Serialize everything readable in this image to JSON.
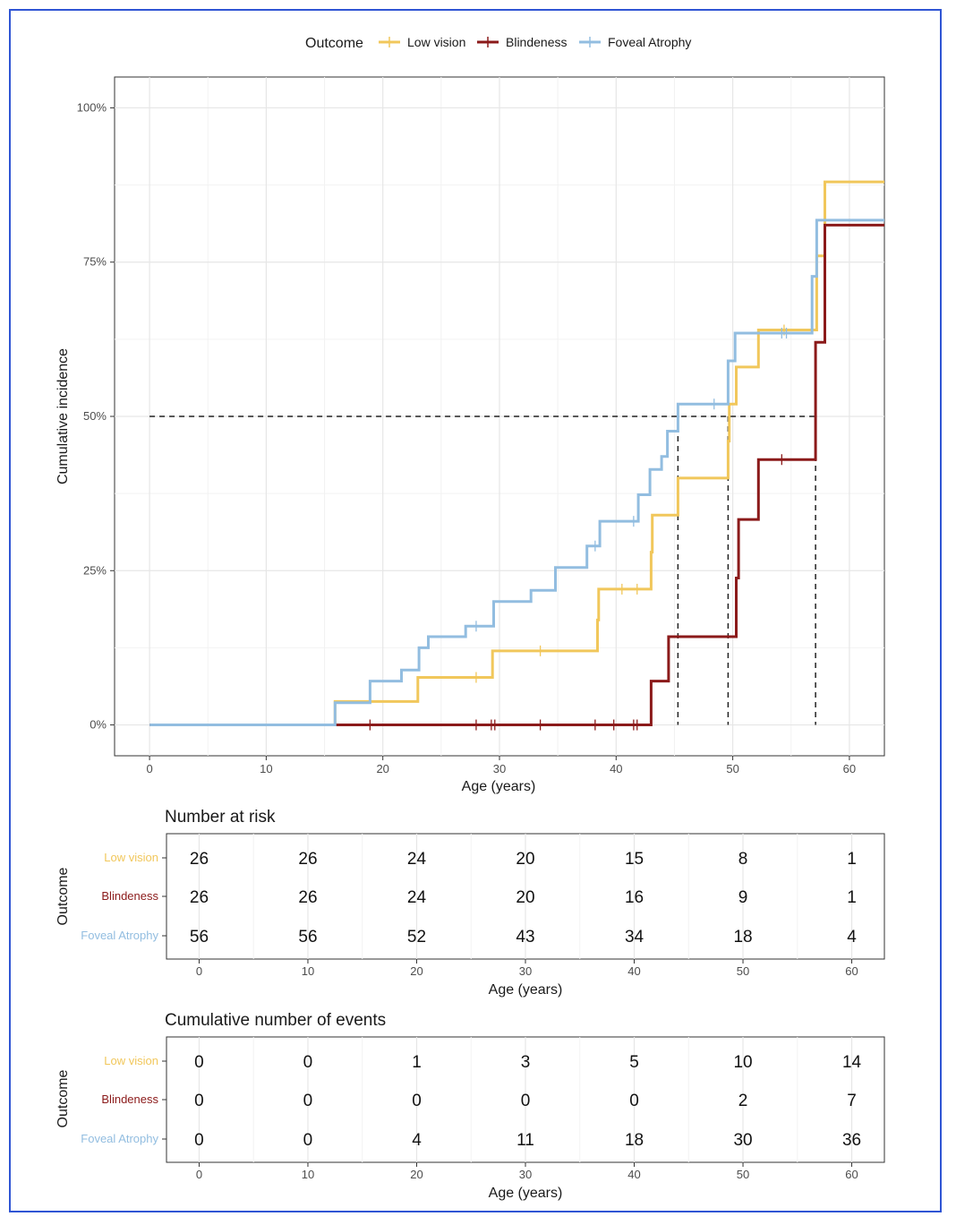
{
  "legend": {
    "title": "Outcome",
    "items": [
      {
        "label": "Low vision",
        "color": "#f1c75b"
      },
      {
        "label": "Blindeness",
        "color": "#8b1a1a"
      },
      {
        "label": "Foveal Atrophy",
        "color": "#92bde0"
      }
    ]
  },
  "chart_data": [
    {
      "type": "line",
      "subtype": "step",
      "xlabel": "Age (years)",
      "ylabel": "Cumulative incidence",
      "xlim": [
        -3,
        63
      ],
      "ylim": [
        -0.05,
        1.05
      ],
      "xticks": [
        0,
        10,
        20,
        30,
        40,
        50,
        60
      ],
      "yticks": [
        0,
        0.25,
        0.5,
        0.75,
        1.0
      ],
      "yticklabels": [
        "0%",
        "25%",
        "50%",
        "75%",
        "100%"
      ],
      "grid": true,
      "legend_position": "top",
      "series": [
        {
          "name": "Low vision",
          "color": "#f1c75b",
          "steps": [
            [
              0,
              0
            ],
            [
              15.9,
              0.038
            ],
            [
              23,
              0.077
            ],
            [
              29.4,
              0.12
            ],
            [
              38.4,
              0.17
            ],
            [
              38.5,
              0.22
            ],
            [
              43,
              0.28
            ],
            [
              43.1,
              0.34
            ],
            [
              45.3,
              0.4
            ],
            [
              49.6,
              0.46
            ],
            [
              49.7,
              0.52
            ],
            [
              50.3,
              0.58
            ],
            [
              52.2,
              0.64
            ],
            [
              57.2,
              0.76
            ],
            [
              57.9,
              0.88
            ],
            [
              63,
              0.88
            ]
          ],
          "censored": [
            [
              28,
              0.077
            ],
            [
              33.5,
              0.12
            ],
            [
              40.5,
              0.22
            ],
            [
              41.8,
              0.22
            ],
            [
              54.4,
              0.64
            ]
          ]
        },
        {
          "name": "Blindeness",
          "color": "#8b1a1a",
          "steps": [
            [
              0,
              0
            ],
            [
              15.9,
              0
            ],
            [
              43,
              0.071
            ],
            [
              44.5,
              0.143
            ],
            [
              50.3,
              0.238
            ],
            [
              50.5,
              0.333
            ],
            [
              52.2,
              0.43
            ],
            [
              57.1,
              0.62
            ],
            [
              57.9,
              0.81
            ],
            [
              63,
              0.81
            ]
          ],
          "censored": [
            [
              18.9,
              0
            ],
            [
              28,
              0
            ],
            [
              29.3,
              0
            ],
            [
              29.6,
              0
            ],
            [
              33.5,
              0
            ],
            [
              38.2,
              0
            ],
            [
              39.8,
              0
            ],
            [
              41.5,
              0
            ],
            [
              41.8,
              0
            ],
            [
              54.2,
              0.43
            ]
          ]
        },
        {
          "name": "Foveal Atrophy",
          "color": "#92bde0",
          "steps": [
            [
              0,
              0
            ],
            [
              15.9,
              0.036
            ],
            [
              18.9,
              0.071
            ],
            [
              21.6,
              0.089
            ],
            [
              23.1,
              0.125
            ],
            [
              23.9,
              0.143
            ],
            [
              27.1,
              0.16
            ],
            [
              29.5,
              0.2
            ],
            [
              32.7,
              0.218
            ],
            [
              34.8,
              0.255
            ],
            [
              37.5,
              0.29
            ],
            [
              38.6,
              0.33
            ],
            [
              41.9,
              0.373
            ],
            [
              42.9,
              0.414
            ],
            [
              43.9,
              0.435
            ],
            [
              44.4,
              0.476
            ],
            [
              45.3,
              0.52
            ],
            [
              49.6,
              0.59
            ],
            [
              50.2,
              0.635
            ],
            [
              56.8,
              0.727
            ],
            [
              57.2,
              0.818
            ],
            [
              63,
              0.818
            ]
          ],
          "censored": [
            [
              28,
              0.16
            ],
            [
              38.2,
              0.29
            ],
            [
              41.5,
              0.33
            ],
            [
              48.4,
              0.52
            ],
            [
              54.2,
              0.635
            ],
            [
              54.6,
              0.635
            ]
          ]
        }
      ],
      "median_lines": [
        45.3,
        49.6,
        57.1
      ]
    },
    {
      "type": "table",
      "title": "Number at risk",
      "ylabel": "Outcome",
      "xlabel": "Age (years)",
      "xticks": [
        0,
        10,
        20,
        30,
        40,
        50,
        60
      ],
      "rows": [
        {
          "name": "Low vision",
          "color": "#f1c75b",
          "values": [
            26,
            26,
            24,
            20,
            15,
            8,
            1
          ]
        },
        {
          "name": "Blindeness",
          "color": "#8b1a1a",
          "values": [
            26,
            26,
            24,
            20,
            16,
            9,
            1
          ]
        },
        {
          "name": "Foveal Atrophy",
          "color": "#92bde0",
          "values": [
            56,
            56,
            52,
            43,
            34,
            18,
            4
          ]
        }
      ]
    },
    {
      "type": "table",
      "title": "Cumulative number of events",
      "ylabel": "Outcome",
      "xlabel": "Age (years)",
      "xticks": [
        0,
        10,
        20,
        30,
        40,
        50,
        60
      ],
      "rows": [
        {
          "name": "Low vision",
          "color": "#f1c75b",
          "values": [
            0,
            0,
            1,
            3,
            5,
            10,
            14
          ]
        },
        {
          "name": "Blindeness",
          "color": "#8b1a1a",
          "values": [
            0,
            0,
            0,
            0,
            0,
            2,
            7
          ]
        },
        {
          "name": "Foveal Atrophy",
          "color": "#92bde0",
          "values": [
            0,
            0,
            4,
            11,
            18,
            30,
            36
          ]
        }
      ]
    }
  ]
}
